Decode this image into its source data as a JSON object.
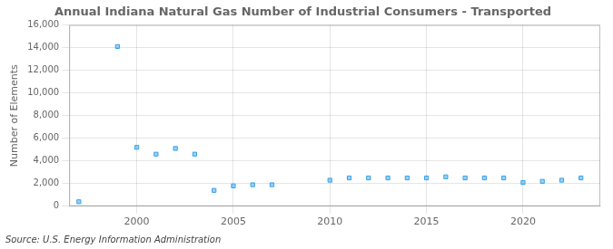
{
  "chart_data": {
    "type": "scatter",
    "title": "Annual Indiana Natural Gas Number of Industrial Consumers - Transported",
    "ylabel": "Number of Elements",
    "annotations": [
      "Source: U.S. Energy Information Administration"
    ],
    "x": [
      1997,
      1999,
      2000,
      2001,
      2002,
      2003,
      2004,
      2005,
      2006,
      2007,
      2010,
      2011,
      2012,
      2013,
      2014,
      2015,
      2016,
      2017,
      2018,
      2019,
      2020,
      2021,
      2022,
      2023
    ],
    "values": [
      400,
      14100,
      5200,
      4600,
      5100,
      4600,
      1400,
      1800,
      1900,
      1900,
      2300,
      2500,
      2500,
      2500,
      2500,
      2500,
      2600,
      2500,
      2500,
      2500,
      2100,
      2200,
      2300,
      2500
    ],
    "marker": "square",
    "xlim": [
      1996.5,
      2024
    ],
    "xticks": [
      2000,
      2005,
      2010,
      2015,
      2020
    ],
    "ylim": [
      0,
      16000
    ],
    "yticks": [
      0,
      {
        "value": 2000,
        "label": "2,000"
      },
      {
        "value": 4000,
        "label": "4,000"
      },
      {
        "value": 6000,
        "label": "6,000"
      },
      {
        "value": 8000,
        "label": "8,000"
      },
      {
        "value": 10000,
        "label": "10,000"
      },
      {
        "value": 12000,
        "label": "12,000"
      },
      {
        "value": 14000,
        "label": "14,000"
      },
      {
        "value": 16000,
        "label": "16,000"
      }
    ],
    "grid": true
  }
}
